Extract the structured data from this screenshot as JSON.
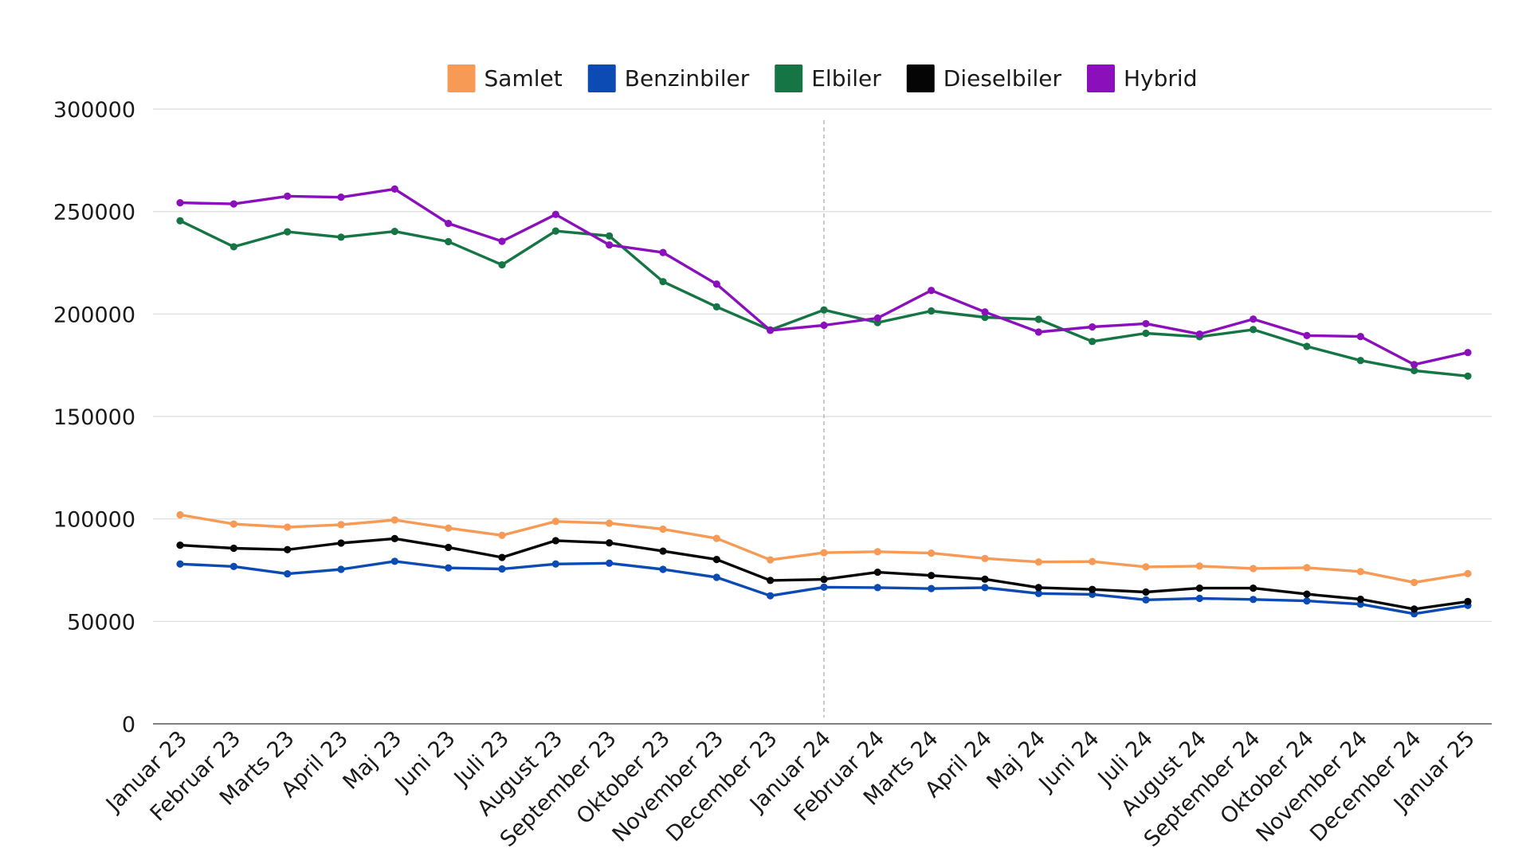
{
  "chart_data": {
    "type": "line",
    "title": "",
    "xlabel": "",
    "ylabel": "",
    "ylim": [
      0,
      300000
    ],
    "yticks": [
      "0",
      "50000",
      "100000",
      "150000",
      "200000",
      "250000",
      "300000"
    ],
    "grid": true,
    "legend_position": "top-center",
    "reference_line_at": "Januar 24",
    "categories": [
      "Januar 23",
      "Februar 23",
      "Marts 23",
      "April 23",
      "Maj 23",
      "Juni 23",
      "Juli 23",
      "August 23",
      "September 23",
      "Oktober 23",
      "November 23",
      "December 23",
      "Januar 24",
      "Februar 24",
      "Marts 24",
      "April 24",
      "Maj 24",
      "Juni 24",
      "Juli 24",
      "August 24",
      "September 24",
      "Oktober 24",
      "November 24",
      "December 24",
      "Januar 25"
    ],
    "series": [
      {
        "name": "Samlet",
        "color": "#f79a55",
        "values": [
          102000,
          97500,
          96000,
          97200,
          99500,
          95500,
          92000,
          98800,
          97900,
          95000,
          90500,
          80000,
          83500,
          84000,
          83300,
          80700,
          79000,
          79200,
          76600,
          77000,
          75800,
          76200,
          74300,
          69000,
          73300
        ]
      },
      {
        "name": "Benzinbiler",
        "color": "#0b4bb3",
        "values": [
          78000,
          76800,
          73200,
          75400,
          79300,
          76100,
          75600,
          78000,
          78400,
          75400,
          71500,
          62500,
          66700,
          66500,
          66000,
          66500,
          63600,
          63200,
          60500,
          61200,
          60700,
          60000,
          58400,
          53700,
          57800
        ]
      },
      {
        "name": "Elbiler",
        "color": "#157545",
        "values": [
          245500,
          232800,
          240100,
          237500,
          240300,
          235300,
          224000,
          240500,
          238100,
          215800,
          203500,
          192200,
          202000,
          195800,
          201500,
          198400,
          197400,
          186600,
          190600,
          188900,
          192400,
          184200,
          177300,
          172400,
          169700
        ]
      },
      {
        "name": "Dieselbiler",
        "color": "#050505",
        "values": [
          87200,
          85700,
          85000,
          88200,
          90400,
          86100,
          81200,
          89400,
          88300,
          84300,
          80200,
          70000,
          70500,
          74000,
          72400,
          70600,
          66500,
          65600,
          64300,
          66200,
          66200,
          63300,
          60800,
          56000,
          59700
        ]
      },
      {
        "name": "Hybrid",
        "color": "#8b10bb",
        "values": [
          254300,
          253700,
          257500,
          257000,
          261000,
          244200,
          235500,
          248600,
          233700,
          230000,
          214600,
          192000,
          194500,
          198000,
          211500,
          201000,
          191200,
          193700,
          195300,
          190200,
          197500,
          189500,
          189000,
          175300,
          181200
        ]
      }
    ]
  }
}
